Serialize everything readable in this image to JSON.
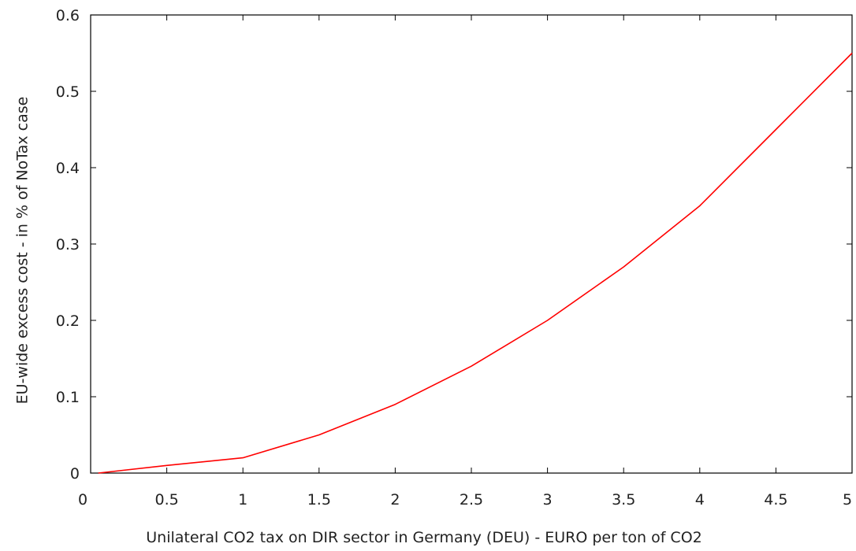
{
  "chart_data": {
    "type": "line",
    "title": "",
    "xlabel": "Unilateral CO2 tax on DIR sector in Germany (DEU) - EURO per ton of CO2",
    "ylabel": "EU-wide excess cost - in % of NoTax case",
    "xlim": [
      0,
      5
    ],
    "ylim": [
      0,
      0.6
    ],
    "xticks": [
      0,
      0.5,
      1,
      1.5,
      2,
      2.5,
      3,
      3.5,
      4,
      4.5,
      5
    ],
    "xtick_labels": [
      "0",
      "0.5",
      "1",
      "1.5",
      "2",
      "2.5",
      "3",
      "3.5",
      "4",
      "4.5",
      "5"
    ],
    "yticks": [
      0,
      0.1,
      0.2,
      0.3,
      0.4,
      0.5,
      0.6
    ],
    "ytick_labels": [
      "0",
      "0.1",
      "0.2",
      "0.3",
      "0.4",
      "0.5",
      "0.6"
    ],
    "grid": false,
    "legend": "none",
    "series": [
      {
        "color": "#ff0000",
        "x": [
          0.05,
          0.5,
          1,
          1.5,
          2,
          2.5,
          3,
          3.5,
          4,
          4.5,
          5
        ],
        "y": [
          0,
          0.01,
          0.02,
          0.05,
          0.09,
          0.14,
          0.2,
          0.27,
          0.35,
          0.45,
          0.55
        ]
      }
    ],
    "axis_color": "#000000"
  }
}
